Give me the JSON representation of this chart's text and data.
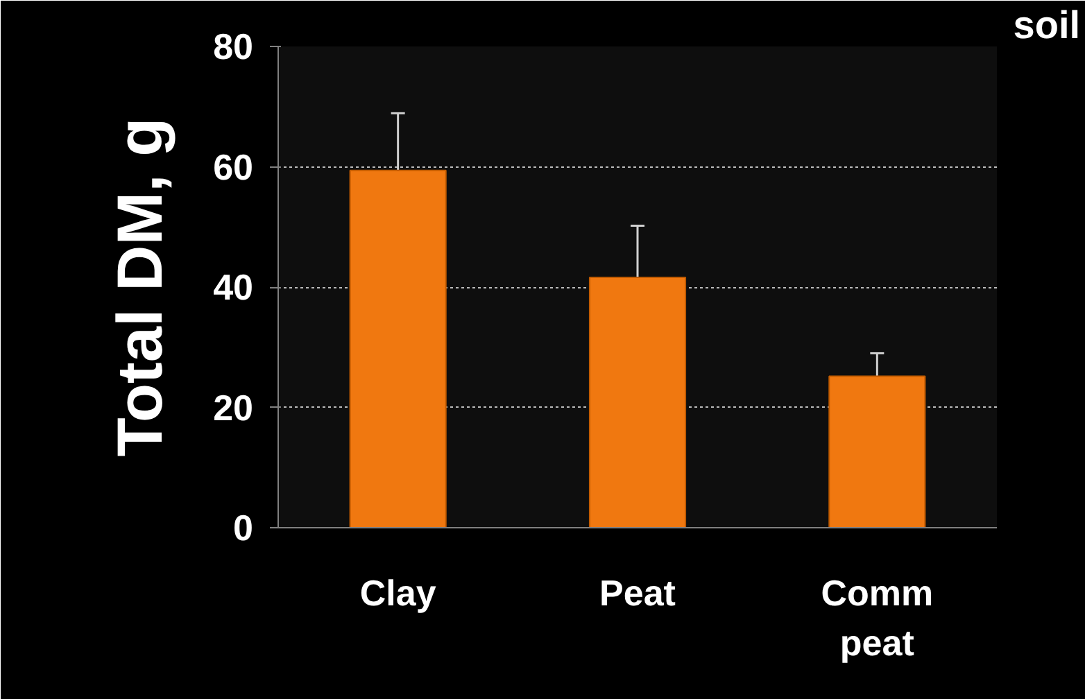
{
  "chart_data": {
    "type": "bar",
    "ylabel": "Total DM, g",
    "categories": [
      "Clay",
      "Peat",
      "Comm peat"
    ],
    "values": [
      59.4,
      41.6,
      25.2
    ],
    "errors": [
      [
        59.4,
        68.9
      ],
      [
        41.6,
        50.2
      ],
      [
        25.2,
        29.0
      ]
    ],
    "color": "#f07810",
    "ylim": [
      0,
      80
    ],
    "yticks": [
      0,
      20,
      40,
      60,
      80
    ],
    "grid": "y",
    "annotations": [
      "soil"
    ]
  }
}
